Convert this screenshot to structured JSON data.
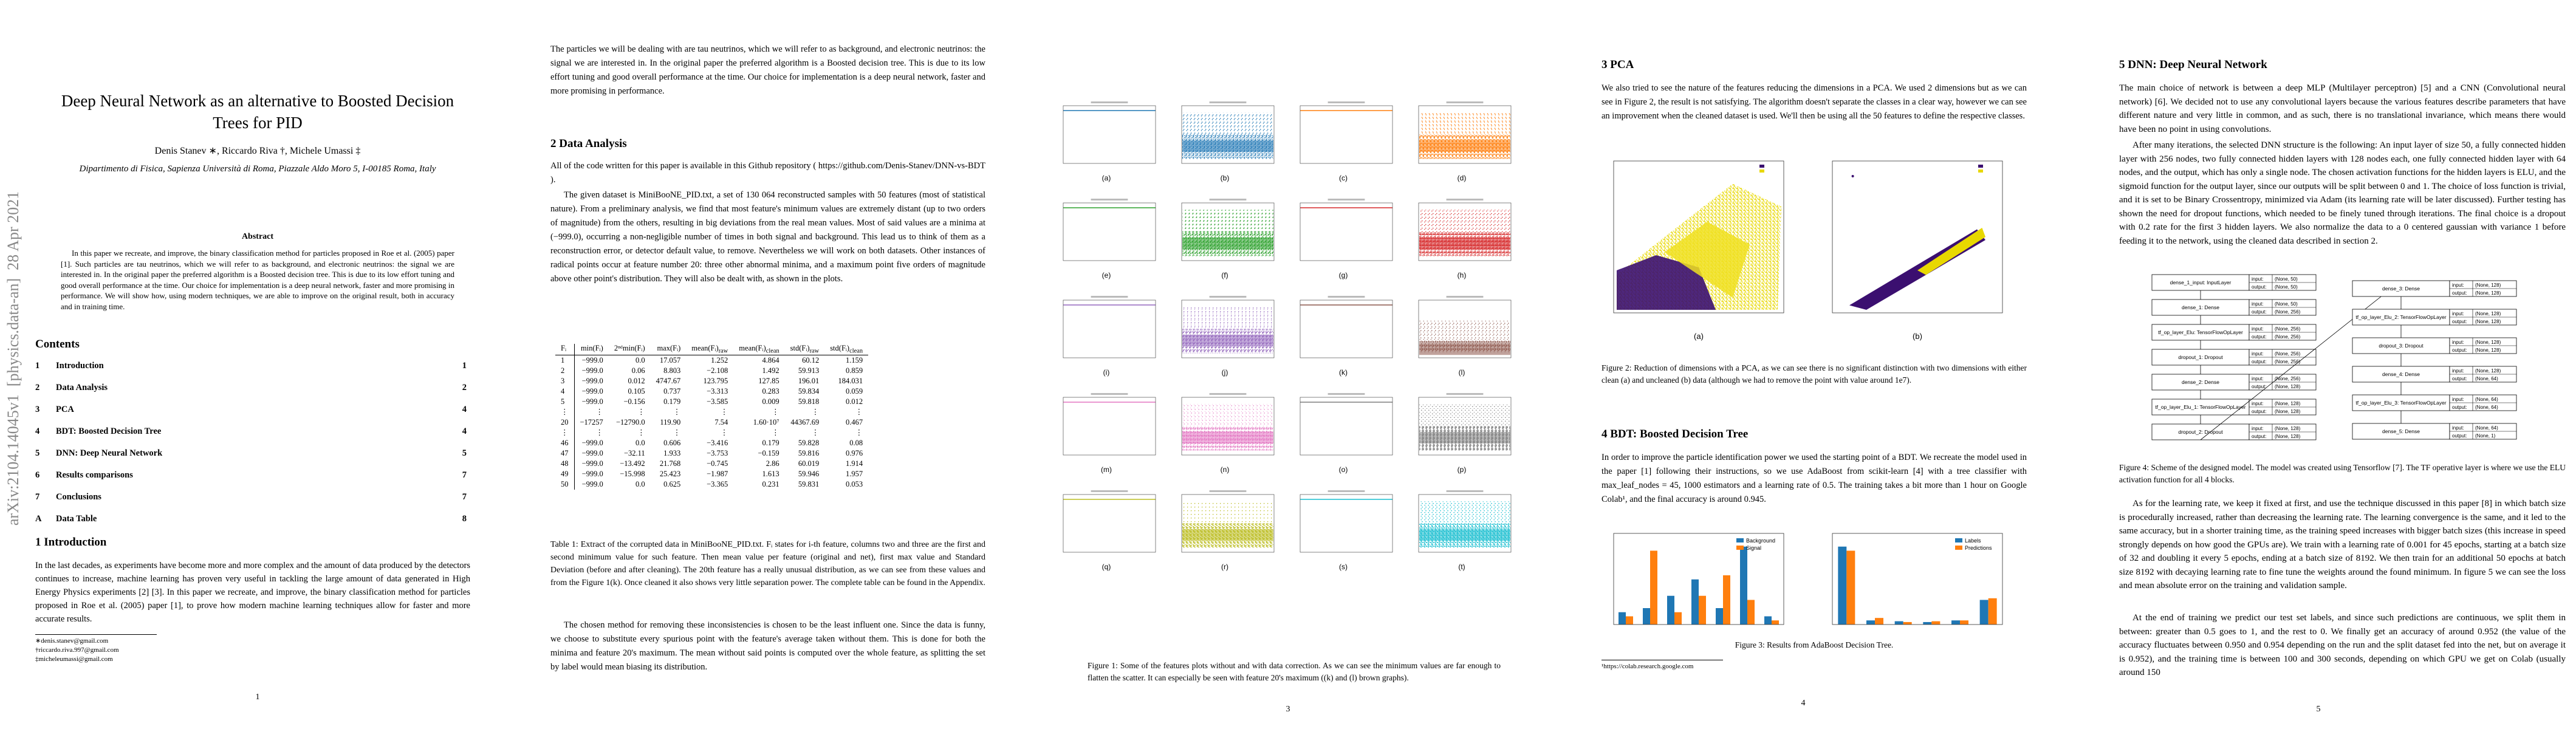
{
  "page1": {
    "arxiv_id": "arXiv:2104.14045v1  [physics.data-an]  28 Apr 2021",
    "title": "Deep Neural Network as an alternative to Boosted Decision Trees for PID",
    "authors": "Denis Stanev ∗, Riccardo Riva †, Michele Umassi ‡",
    "affiliation": "Dipartimento di Fisica, Sapienza Università di Roma, Piazzale Aldo Moro 5, I-00185 Roma, Italy",
    "abstract_heading": "Abstract",
    "abstract": "In this paper we recreate, and improve, the binary classification method for particles proposed in Roe et al. (2005) paper [1]. Such particles are tau neutrinos, which we will refer to as background, and electronic neutrinos: the signal we are interested in. In the original paper the preferred algorithm is a Boosted decision tree. This is due to its low effort tuning and good overall performance at the time. Our choice for implementation is a deep neural network, faster and more promising in performance. We will show how, using modern techniques, we are able to improve on the original result, both in accuracy and in training time.",
    "contents_heading": "Contents",
    "toc": [
      {
        "num": "1",
        "title": "Introduction",
        "page": "1"
      },
      {
        "num": "2",
        "title": "Data Analysis",
        "page": "2"
      },
      {
        "num": "3",
        "title": "PCA",
        "page": "4"
      },
      {
        "num": "4",
        "title": "BDT: Boosted Decision Tree",
        "page": "4"
      },
      {
        "num": "5",
        "title": "DNN: Deep Neural Network",
        "page": "5"
      },
      {
        "num": "6",
        "title": "Results comparisons",
        "page": "7"
      },
      {
        "num": "7",
        "title": "Conclusions",
        "page": "7"
      },
      {
        "num": "A",
        "title": "Data Table",
        "page": "8"
      }
    ],
    "intro_heading": "1   Introduction",
    "intro": "In the last decades, as experiments have become more and more complex and the amount of data produced by the detectors continues to increase, machine learning has proven very useful in tackling the large amount of data generated in High Energy Physics experiments [2] [3]. In this paper we recreate, and improve, the binary classification method for particles proposed in Roe et al. (2005) paper [1], to prove how modern machine learning techniques allow for faster and more accurate results.",
    "footnotes": [
      "∗denis.stanev@gmail.com",
      "†riccardo.riva.997@gmail.com",
      "‡micheleumassi@gmail.com"
    ],
    "page_number": "1"
  },
  "page2": {
    "para1": "The particles we will be dealing with are tau neutrinos, which we will refer to as background, and electronic neutrinos: the signal we are interested in. In the original paper the preferred algorithm is a Boosted decision tree. This is due to its low effort tuning and good overall performance at the time. Our choice for implementation is a deep neural network, faster and more promising in performance.",
    "heading": "2   Data Analysis",
    "para2": "All of the code written for this paper is available in this Github repository ( https://github.com/Denis-Stanev/DNN-vs-BDT ).",
    "para3": "The given dataset is MiniBooNE_PID.txt, a set of 130 064 reconstructed samples with 50 features (most of statistical nature). From a preliminary analysis, we find that most feature's minimum values are extremely distant (up to two orders of magnitude) from the others, resulting in big deviations from the real mean values. Most of said values are a minima at (−999.0), occurring a non-negligible number of times in both signal and background. This lead us to think of them as a reconstruction error, or detector default value, to remove. Nevertheless we will work on both datasets. Other instances of radical points occur at feature number 20: three other abnormal minima, and a maximum point five orders of magnitude above other point's distribution. They will also be dealt with, as shown in the plots.",
    "table_header": [
      {
        "base": "Fᵢ",
        "sub": ""
      },
      {
        "base": "min(Fᵢ)",
        "sub": ""
      },
      {
        "base": "2ⁿᵈmin(Fᵢ)",
        "sub": ""
      },
      {
        "base": "max(Fᵢ)",
        "sub": ""
      },
      {
        "base": "mean(Fᵢ)",
        "sub": "raw"
      },
      {
        "base": "mean(Fᵢ)",
        "sub": "clean"
      },
      {
        "base": "std(Fᵢ)",
        "sub": "raw"
      },
      {
        "base": "std(Fᵢ)",
        "sub": "clean"
      }
    ],
    "table_rows": [
      [
        "1",
        "−999.0",
        "0.0",
        "17.057",
        "1.252",
        "4.864",
        "60.12",
        "1.159"
      ],
      [
        "2",
        "−999.0",
        "0.06",
        "8.803",
        "−2.108",
        "1.492",
        "59.913",
        "0.859"
      ],
      [
        "3",
        "−999.0",
        "0.012",
        "4747.67",
        "123.795",
        "127.85",
        "196.01",
        "184.031"
      ],
      [
        "4",
        "−999.0",
        "0.105",
        "0.737",
        "−3.313",
        "0.283",
        "59.834",
        "0.059"
      ],
      [
        "5",
        "−999.0",
        "−0.156",
        "0.179",
        "−3.585",
        "0.009",
        "59.818",
        "0.012"
      ],
      [
        "⋮",
        "⋮",
        "⋮",
        "⋮",
        "⋮",
        "⋮",
        "⋮",
        "⋮"
      ],
      [
        "20",
        "−17257",
        "−12790.0",
        "119.90",
        "7.54",
        "1.60·10⁷",
        "44367.69",
        "0.467"
      ],
      [
        "⋮",
        "⋮",
        "⋮",
        "⋮",
        "⋮",
        "⋮",
        "⋮",
        "⋮"
      ],
      [
        "46",
        "−999.0",
        "0.0",
        "0.606",
        "−3.416",
        "0.179",
        "59.828",
        "0.08"
      ],
      [
        "47",
        "−999.0",
        "−32.11",
        "1.933",
        "−3.753",
        "−0.159",
        "59.816",
        "0.976"
      ],
      [
        "48",
        "−999.0",
        "−13.492",
        "21.768",
        "−0.745",
        "2.86",
        "60.019",
        "1.914"
      ],
      [
        "49",
        "−999.0",
        "−15.998",
        "25.423",
        "−1.987",
        "1.613",
        "59.946",
        "1.957"
      ],
      [
        "50",
        "−999.0",
        "0.0",
        "0.625",
        "−3.365",
        "0.231",
        "59.831",
        "0.053"
      ]
    ],
    "table_caption": "Table 1: Extract of the corrupted data in MiniBooNE_PID.txt. Fᵢ states for i-th feature, columns two and three are the first and second minimum value for such feature. Then mean value per feature (original and net), first max value and Standard Deviation (before and after cleaning). The 20th feature has a really unusual distribution, as we can see from these values and from the Figure 1(k). Once cleaned it also shows very little separation power. The complete table can be found in the Appendix.",
    "para4": "The chosen method for removing these inconsistencies is chosen to be the least influent one. Since the data is funny, we choose to substitute every spurious point with the feature's average taken without them. This is done for both the minima and feature 20's maximum. The mean without said points is computed over the whole feature, as splitting the set by label would mean biasing its distribution."
  },
  "page3": {
    "labels": [
      "(a)",
      "(b)",
      "(c)",
      "(d)",
      "(e)",
      "(f)",
      "(g)",
      "(h)",
      "(i)",
      "(j)",
      "(k)",
      "(l)",
      "(m)",
      "(n)",
      "(o)",
      "(p)",
      "(q)",
      "(r)",
      "(s)",
      "(t)"
    ],
    "caption": "Figure 1: Some of the features plots without and with data correction. As we can see the minimum values are far enough to flatten the scatter. It can especially be seen with feature 20's maximum ((k) and (l) brown graphs).",
    "page_number": "3"
  },
  "page4": {
    "heading1": "3   PCA",
    "para1": "We also tried to see the nature of the features reducing the dimensions in a PCA. We used 2 dimensions but as we can see in Figure 2, the result is not satisfying. The algorithm doesn't separate the classes in a clear way, however we can see an improvement when the cleaned dataset is used. We'll then be using all the 50 features to define the respective classes.",
    "fig2_labels": [
      "(a)",
      "(b)"
    ],
    "fig2_caption": "Figure 2: Reduction of dimensions with a PCA, as we can see there is no significant distinction with two dimensions with either clean (a) and uncleaned (b) data (although we had to remove the point with value around 1e7).",
    "heading2": "4   BDT: Boosted Decision Tree",
    "para2": "In order to improve the particle identification power we used the starting point of a BDT. We recreate the model used in the paper [1] following their instructions, so we use AdaBoost from scikit-learn [4] with a tree classifier with max_leaf_nodes = 45, 1000 estimators and a learning rate of 0.5. The training takes a bit more than 1 hour on Google Colab¹, and the final accuracy is around 0.945.",
    "fig3_legend_left": [
      "Background",
      "Signal"
    ],
    "fig3_legend_right": [
      "Labels",
      "Predictions"
    ],
    "fig3_caption": "Figure 3: Results from AdaBoost Decision Tree.",
    "footnote": "¹https://colab.research.google.com",
    "page_number": "4"
  },
  "page5": {
    "heading": "5   DNN: Deep Neural Network",
    "para1": "The main choice of network is between a deep MLP (Multilayer perceptron) [5] and a CNN (Convolutional neural network) [6]. We decided not to use any convolutional layers because the various features describe parameters that have different nature and very little in common, and as such, there is no translational invariance, which means there would have been no point in using convolutions.",
    "para2": "After many iterations, the selected DNN structure is the following: An input layer of size 50, a fully connected hidden layer with 256 nodes, two fully connected hidden layers with 128 nodes each, one fully connected hidden layer with 64 nodes, and the output, which has only a single node. The chosen activation functions for the hidden layers is ELU, and the sigmoid function for the output layer, since our outputs will be split between 0 and 1. The choice of loss function is trivial, and it is set to be Binary Crossentropy, minimized via Adam (its learning rate will be later discussed). Further testing has shown the need for dropout functions, which needed to be finely tuned through iterations. The final choice is a dropout with 0.2 rate for the first 3 hidden layers. We also normalize the data to a 0 centered gaussian with variance 1 before feeding it to the network, using the cleaned data described in section 2.",
    "nodes": [
      {
        "name": "dense_1_input: InputLayer",
        "in_label": "input:",
        "in": "(None, 50)",
        "out_label": "output:",
        "out": "(None, 50)"
      },
      {
        "name": "dense_1: Dense",
        "in_label": "input:",
        "in": "(None, 50)",
        "out_label": "output:",
        "out": "(None, 256)"
      },
      {
        "name": "tf_op_layer_Elu: TensorFlowOpLayer",
        "in_label": "input:",
        "in": "(None, 256)",
        "out_label": "output:",
        "out": "(None, 256)"
      },
      {
        "name": "dropout_1: Dropout",
        "in_label": "input:",
        "in": "(None, 256)",
        "out_label": "output:",
        "out": "(None, 256)"
      },
      {
        "name": "dense_2: Dense",
        "in_label": "input:",
        "in": "(None, 256)",
        "out_label": "output:",
        "out": "(None, 128)"
      },
      {
        "name": "tf_op_layer_Elu_1: TensorFlowOpLayer",
        "in_label": "input:",
        "in": "(None, 128)",
        "out_label": "output:",
        "out": "(None, 128)"
      },
      {
        "name": "dropout_2: Dropout",
        "in_label": "input:",
        "in": "(None, 128)",
        "out_label": "output:",
        "out": "(None, 128)"
      },
      {
        "name": "dense_3: Dense",
        "in_label": "input:",
        "in": "(None, 128)",
        "out_label": "output:",
        "out": "(None, 128)"
      },
      {
        "name": "tf_op_layer_Elu_2: TensorFlowOpLayer",
        "in_label": "input:",
        "in": "(None, 128)",
        "out_label": "output:",
        "out": "(None, 128)"
      },
      {
        "name": "dropout_3: Dropout",
        "in_label": "input:",
        "in": "(None, 128)",
        "out_label": "output:",
        "out": "(None, 128)"
      },
      {
        "name": "dense_4: Dense",
        "in_label": "input:",
        "in": "(None, 128)",
        "out_label": "output:",
        "out": "(None, 64)"
      },
      {
        "name": "tf_op_layer_Elu_3: TensorFlowOpLayer",
        "in_label": "input:",
        "in": "(None, 64)",
        "out_label": "output:",
        "out": "(None, 64)"
      },
      {
        "name": "dense_5: Dense",
        "in_label": "input:",
        "in": "(None, 64)",
        "out_label": "output:",
        "out": "(None, 1)"
      }
    ],
    "fig4_caption": "Figure 4: Scheme of the designed model. The model was created using Tensorflow [7]. The TF operative layer is where we use the ELU activation function for all 4 blocks.",
    "para3": "As for the learning rate, we keep it fixed at first, and use the technique discussed in this paper [8] in which batch size is procedurally increased, rather than decreasing the learning rate. The learning convergence is the same, and it led to the same accuracy, but in a shorter training time, as the training speed increases with bigger batch sizes (this increase in speed strongly depends on how good the GPUs are). We train with a learning rate of 0.001 for 45 epochs, starting at a batch size of 32 and doubling it every 5 epochs, ending at a batch size of 8192. We then train for an additional 50 epochs at batch size 8192 with decaying learning rate to fine tune the weights around the found minimum. In figure 5 we can see the loss and mean absolute error on the training and validation sample.",
    "para4": "At the end of training we predict our test set labels, and since such predictions are continuous, we split them in between: greater than 0.5 goes to 1, and the rest to 0. We finally get an accuracy of around 0.952 (the value of the accuracy fluctuates between 0.950 and 0.954 depending on the run and the split dataset fed into the net, but on average it is 0.952), and the training time is between 100 and 300 seconds, depending on which GPU we get on Colab (usually around 150",
    "page_number": "5"
  }
}
